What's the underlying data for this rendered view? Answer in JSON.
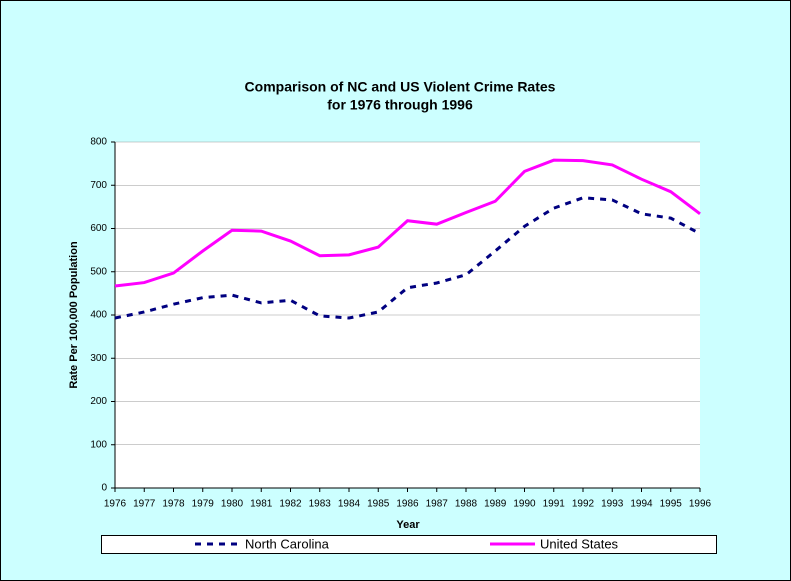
{
  "chart_data": {
    "type": "line",
    "title": "Comparison of NC and US Violent Crime Rates",
    "subtitle": "for 1976 through 1996",
    "x_label": "Year",
    "y_label": "Rate Per 100,000 Population",
    "categories": [
      "1976",
      "1977",
      "1978",
      "1979",
      "1980",
      "1981",
      "1982",
      "1983",
      "1984",
      "1985",
      "1986",
      "1987",
      "1988",
      "1989",
      "1990",
      "1991",
      "1992",
      "1993",
      "1994",
      "1995",
      "1996"
    ],
    "series": [
      {
        "name": "North Carolina",
        "color": "#000080",
        "dash": true,
        "values": [
          393,
          407,
          425,
          440,
          446,
          428,
          434,
          398,
          393,
          407,
          463,
          474,
          493,
          548,
          605,
          647,
          671,
          666,
          634,
          624,
          588
        ]
      },
      {
        "name": "United States",
        "color": "#ff00ff",
        "dash": false,
        "values": [
          467,
          475,
          497,
          548,
          596,
          594,
          571,
          537,
          539,
          557,
          618,
          610,
          637,
          663,
          732,
          758,
          757,
          747,
          714,
          685,
          634
        ]
      }
    ],
    "ylim": [
      0,
      800
    ],
    "yticks": [
      0,
      100,
      200,
      300,
      400,
      500,
      600,
      700,
      800
    ],
    "grid": true,
    "legend": "bottom"
  }
}
